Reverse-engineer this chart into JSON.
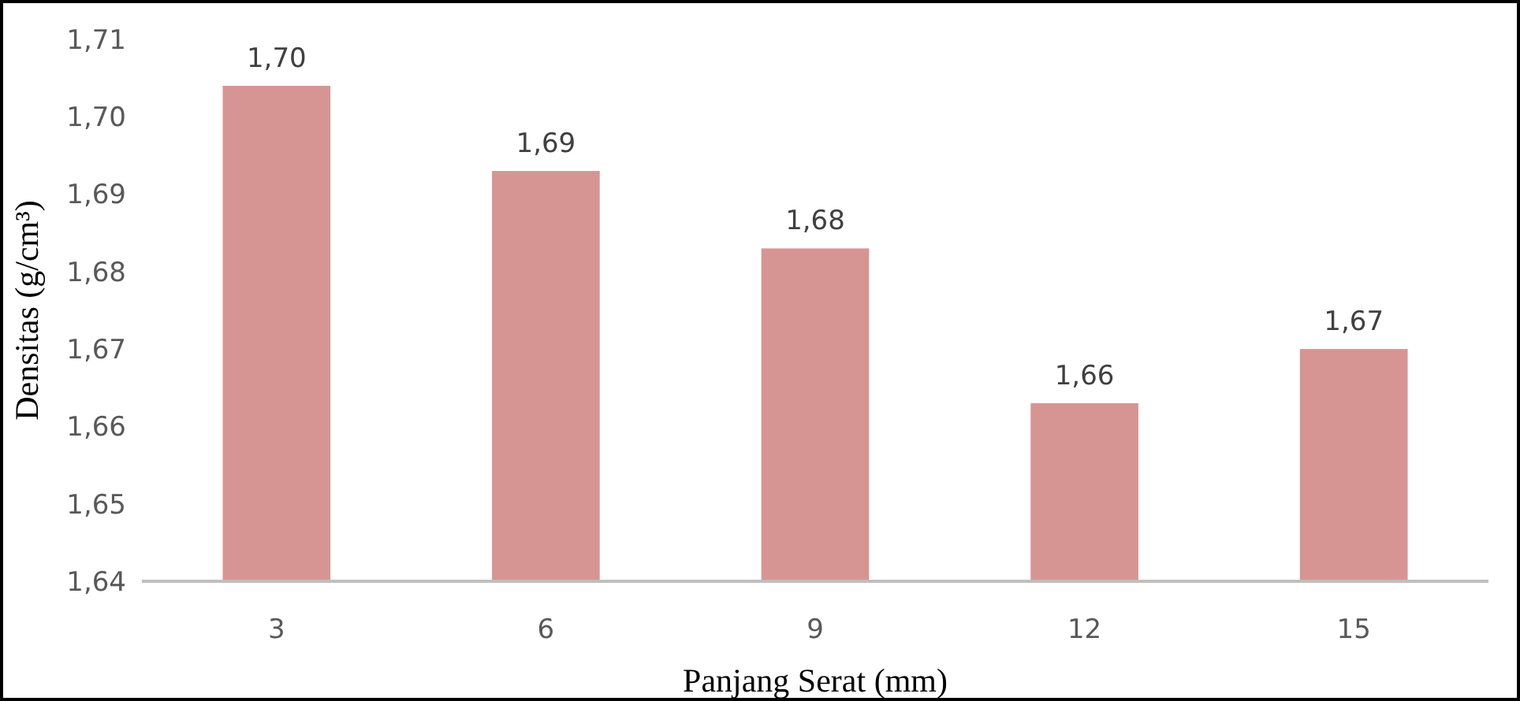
{
  "chart_data": {
    "type": "bar",
    "xlabel": "Panjang Serat (mm)",
    "ylabel": "Densitas (g/cm³)",
    "categories": [
      "3",
      "6",
      "9",
      "12",
      "15"
    ],
    "values": [
      1.704,
      1.693,
      1.683,
      1.663,
      1.67
    ],
    "value_labels": [
      "1,70",
      "1,69",
      "1,68",
      "1,66",
      "1,67"
    ],
    "color": "#d69593",
    "ylim": [
      1.64,
      1.71
    ],
    "yticks": [
      {
        "value": 1.64,
        "label": "1,64"
      },
      {
        "value": 1.65,
        "label": "1,65"
      },
      {
        "value": 1.66,
        "label": "1,66"
      },
      {
        "value": 1.67,
        "label": "1,67"
      },
      {
        "value": 1.68,
        "label": "1,68"
      },
      {
        "value": 1.69,
        "label": "1,69"
      },
      {
        "value": 1.7,
        "label": "1,70"
      },
      {
        "value": 1.71,
        "label": "1,71"
      }
    ],
    "grid": false
  }
}
